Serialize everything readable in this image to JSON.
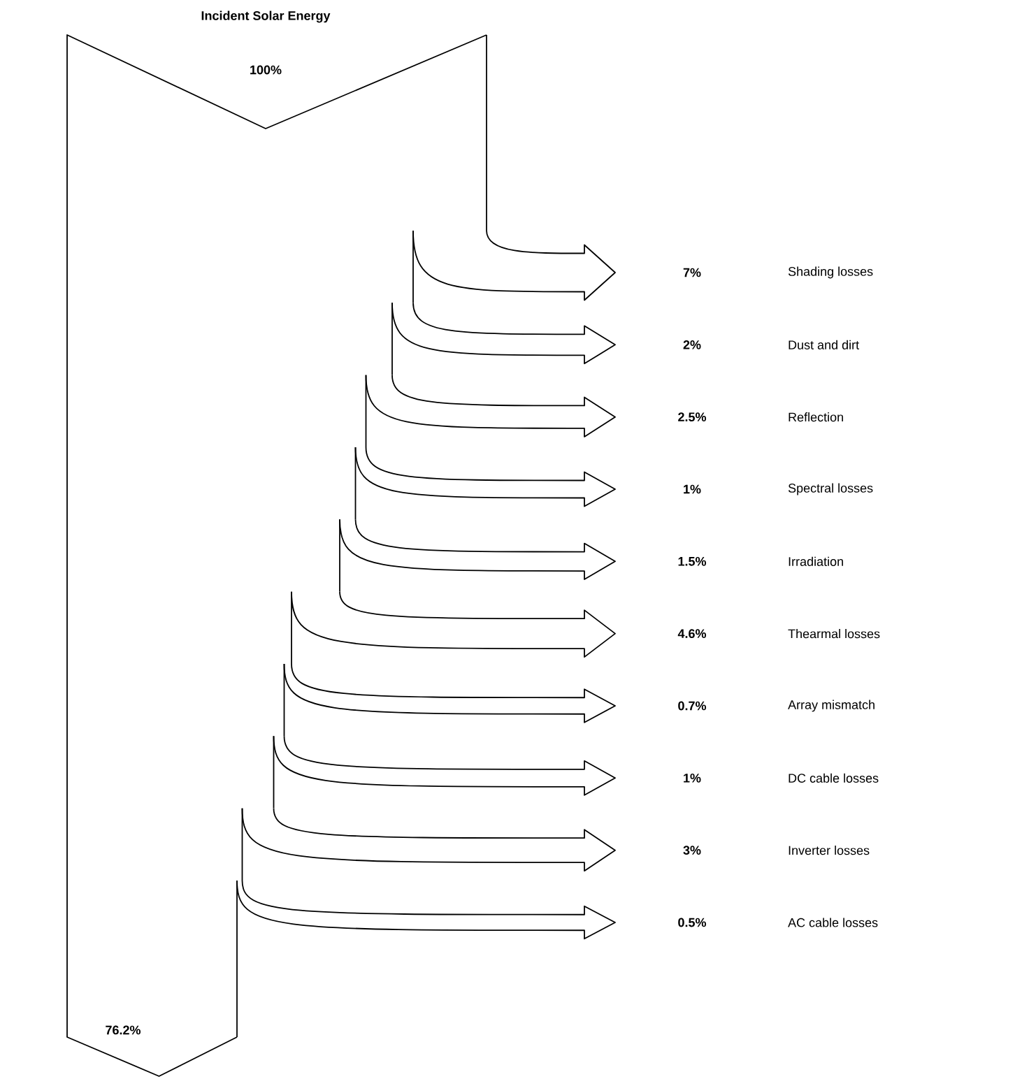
{
  "chart_data": {
    "type": "other",
    "title": "Incident Solar Energy",
    "categories": [
      "Shading losses",
      "Dust and dirt",
      "Reflection",
      "Spectral losses",
      "Irradiation",
      "Thearmal losses",
      "Array mismatch",
      "DC cable losses",
      "Inverter losses",
      "AC cable losses"
    ],
    "values": [
      7,
      2,
      2.5,
      1,
      1.5,
      4.6,
      0.7,
      1,
      3,
      0.5
    ],
    "value_labels": [
      "7%",
      "2%",
      "2.5%",
      "1%",
      "1.5%",
      "4.6%",
      "0.7%",
      "1%",
      "3%",
      "0.5%"
    ],
    "annotations": [
      "100%",
      "76.2%"
    ]
  }
}
